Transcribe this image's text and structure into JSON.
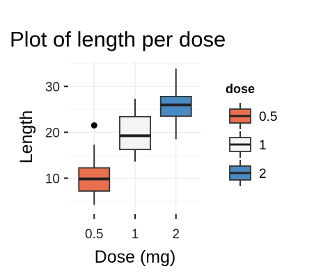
{
  "chart_data": {
    "type": "box",
    "title": "Plot of length  per dose",
    "xlabel": "Dose (mg)",
    "ylabel": "Length",
    "categories": [
      "0.5",
      "1",
      "2"
    ],
    "y_ticks": [
      10,
      20,
      30
    ],
    "ylim": [
      2.5,
      35.5
    ],
    "grid": true,
    "legend": {
      "title": "dose",
      "position": "right",
      "entries": [
        "0.5",
        "1",
        "2"
      ]
    },
    "colors": [
      "#e8704f",
      "#f4f4f4",
      "#4a8ac2"
    ],
    "boxes": [
      {
        "category": "0.5",
        "min": 4.2,
        "q1": 7.2,
        "median": 9.85,
        "q3": 12.25,
        "max": 17.3,
        "outliers": [
          21.5
        ]
      },
      {
        "category": "1",
        "min": 13.6,
        "q1": 16.25,
        "median": 19.25,
        "q3": 23.4,
        "max": 27.3,
        "outliers": []
      },
      {
        "category": "2",
        "min": 18.5,
        "q1": 23.5,
        "median": 25.95,
        "q3": 27.8,
        "max": 33.9,
        "outliers": []
      }
    ]
  }
}
